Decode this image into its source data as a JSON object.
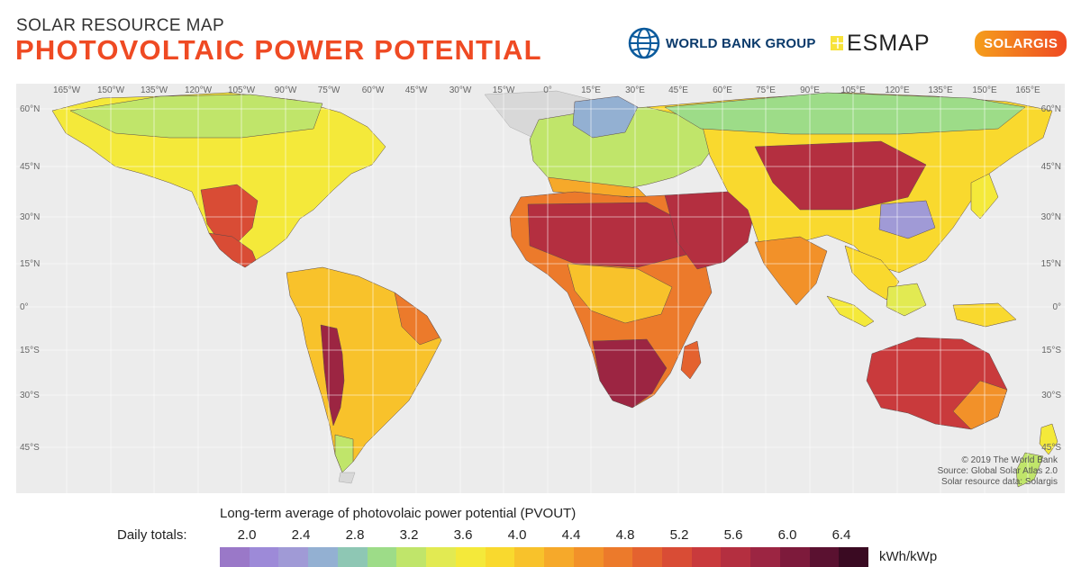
{
  "header": {
    "subtitle": "SOLAR RESOURCE MAP",
    "title": "PHOTOVOLTAIC POWER POTENTIAL"
  },
  "logos": {
    "world_bank": "WORLD BANK GROUP",
    "esmap": "ESMAP",
    "solargis": "SOLARGIS"
  },
  "map": {
    "longitude_labels": [
      "165°W",
      "150°W",
      "135°W",
      "120°W",
      "105°W",
      "90°W",
      "75°W",
      "60°W",
      "45°W",
      "30°W",
      "15°W",
      "0°",
      "15°E",
      "30°E",
      "45°E",
      "60°E",
      "75°E",
      "90°E",
      "105°E",
      "120°E",
      "135°E",
      "150°E",
      "165°E"
    ],
    "latitude_labels": [
      "60°N",
      "45°N",
      "30°N",
      "15°N",
      "0°",
      "15°S",
      "30°S",
      "45°S"
    ],
    "ocean_color": "#ececec",
    "credit": [
      "© 2019 The World Bank",
      "Source: Global Solar Atlas 2.0",
      "Solar resource data: Solargis"
    ]
  },
  "legend": {
    "title": "Long-term average of photovolaic power potential (PVOUT)",
    "label": "Daily totals:",
    "ticks": [
      "2.0",
      "2.4",
      "2.8",
      "3.2",
      "3.6",
      "4.0",
      "4.4",
      "4.8",
      "5.2",
      "5.6",
      "6.0",
      "6.4"
    ],
    "unit": "kWh/kWp",
    "colors": [
      "#9a78c8",
      "#9d8ad8",
      "#a09ad6",
      "#93b0d2",
      "#8ec7b4",
      "#9ddc88",
      "#c0e56a",
      "#e2ea52",
      "#f4e93a",
      "#f9d92e",
      "#f8c22b",
      "#f6a92a",
      "#f29129",
      "#ec7a2b",
      "#e4622f",
      "#d94c35",
      "#c93a3c",
      "#b42f40",
      "#9c2542",
      "#7d1a3b",
      "#5a1130",
      "#3a0a22"
    ]
  }
}
